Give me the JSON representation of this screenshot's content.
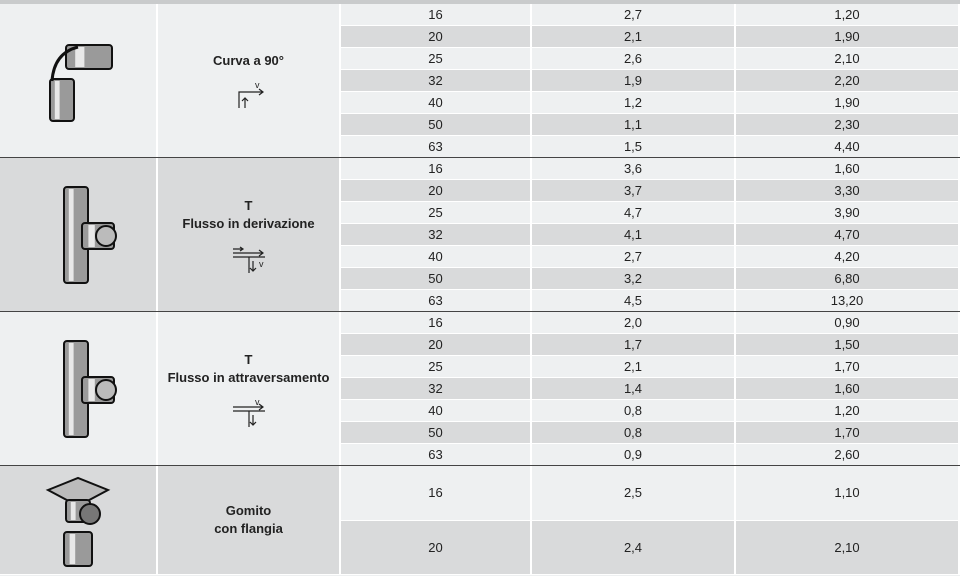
{
  "table": {
    "groups": [
      {
        "name": [
          "Curva a 90°"
        ],
        "symbol_label": "v",
        "rows": [
          [
            "16",
            "2,7",
            "1,20"
          ],
          [
            "20",
            "2,1",
            "1,90"
          ],
          [
            "25",
            "2,6",
            "2,10"
          ],
          [
            "32",
            "1,9",
            "2,20"
          ],
          [
            "40",
            "1,2",
            "1,90"
          ],
          [
            "50",
            "1,1",
            "2,30"
          ],
          [
            "63",
            "1,5",
            "4,40"
          ]
        ]
      },
      {
        "name": [
          "T",
          "Flusso in derivazione"
        ],
        "symbol_label": "v",
        "rows": [
          [
            "16",
            "3,6",
            "1,60"
          ],
          [
            "20",
            "3,7",
            "3,30"
          ],
          [
            "25",
            "4,7",
            "3,90"
          ],
          [
            "32",
            "4,1",
            "4,70"
          ],
          [
            "40",
            "2,7",
            "4,20"
          ],
          [
            "50",
            "3,2",
            "6,80"
          ],
          [
            "63",
            "4,5",
            "13,20"
          ]
        ]
      },
      {
        "name": [
          "T",
          "Flusso in attraversamento"
        ],
        "symbol_label": "v",
        "rows": [
          [
            "16",
            "2,0",
            "0,90"
          ],
          [
            "20",
            "1,7",
            "1,50"
          ],
          [
            "25",
            "2,1",
            "1,70"
          ],
          [
            "32",
            "1,4",
            "1,60"
          ],
          [
            "40",
            "0,8",
            "1,20"
          ],
          [
            "50",
            "0,8",
            "1,70"
          ],
          [
            "63",
            "0,9",
            "2,60"
          ]
        ]
      },
      {
        "name": [
          "Gomito",
          "con flangia"
        ],
        "rows": [
          [
            "16",
            "2,5",
            "1,10"
          ],
          [
            "20",
            "2,4",
            "2,10"
          ]
        ]
      }
    ]
  }
}
